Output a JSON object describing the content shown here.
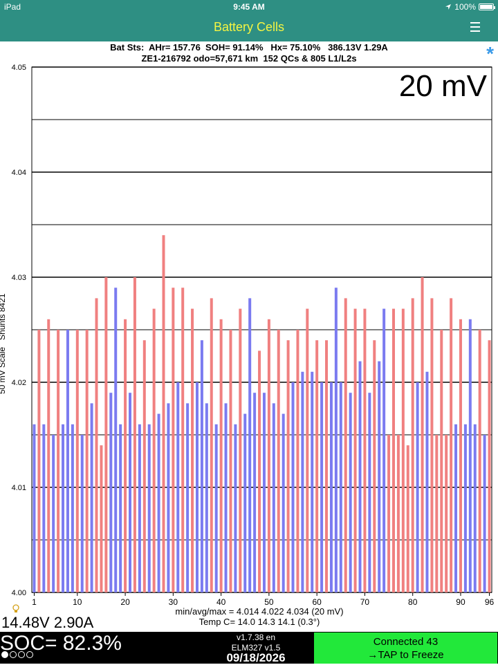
{
  "status_bar": {
    "device": "iPad",
    "time": "9:45 AM",
    "battery": "100%",
    "icons": [
      "location-arrow-icon",
      "battery-icon"
    ]
  },
  "header": {
    "title": "Battery Cells",
    "menu_icon": "hamburger-menu-icon"
  },
  "info": {
    "line1": "Bat Sts:  AHr= 157.76  SOH= 91.14%   Hx= 75.10%   386.13V 1.29A",
    "line2": "ZE1-216792 odo=57,671 km  152 QCs & 805 L1/L2s",
    "asterisk": "*"
  },
  "scale_label": "20 mV",
  "y_axis_label": "50 mV Scale   Shunts 8421",
  "stats": {
    "minavgmax": "min/avg/max = 4.014 4.022 4.034  (20 mV)",
    "temp": "Temp C= 14.0  14.3  14.1  (0.3°)"
  },
  "pack": {
    "voltage_current": "14.48V 2.90A",
    "soc": "SOC= 82.3%"
  },
  "app": {
    "version": "v1.7.38 en",
    "adapter": "ELM327 v1.5",
    "date": "09/18/2026"
  },
  "connection": {
    "status": "Connected 43",
    "action": "→TAP to Freeze"
  },
  "colors": {
    "header_bg": "#2e8f83",
    "title": "#f5f542",
    "bar_red": "#f08080",
    "bar_blue": "#7b7bf0",
    "connect_bg": "#22e83a",
    "asterisk": "#3a9ae8"
  },
  "chart_data": {
    "type": "bar",
    "ylim": [
      4.0,
      4.05
    ],
    "ytick_labels": [
      "4.00",
      "4.01",
      "4.02",
      "4.03",
      "4.04",
      "4.05"
    ],
    "xtick_labels": [
      "1",
      "10",
      "20",
      "30",
      "40",
      "50",
      "60",
      "70",
      "80",
      "90",
      "96"
    ],
    "x": [
      1,
      2,
      3,
      4,
      5,
      6,
      7,
      8,
      9,
      10,
      11,
      12,
      13,
      14,
      15,
      16,
      17,
      18,
      19,
      20,
      21,
      22,
      23,
      24,
      25,
      26,
      27,
      28,
      29,
      30,
      31,
      32,
      33,
      34,
      35,
      36,
      37,
      38,
      39,
      40,
      41,
      42,
      43,
      44,
      45,
      46,
      47,
      48,
      49,
      50,
      51,
      52,
      53,
      54,
      55,
      56,
      57,
      58,
      59,
      60,
      61,
      62,
      63,
      64,
      65,
      66,
      67,
      68,
      69,
      70,
      71,
      72,
      73,
      74,
      75,
      76,
      77,
      78,
      79,
      80,
      81,
      82,
      83,
      84,
      85,
      86,
      87,
      88,
      89,
      90,
      91,
      92,
      93,
      94,
      95,
      96
    ],
    "values": [
      4.016,
      4.025,
      4.016,
      4.026,
      4.015,
      4.025,
      4.016,
      4.025,
      4.016,
      4.025,
      4.015,
      4.025,
      4.018,
      4.028,
      4.014,
      4.03,
      4.019,
      4.029,
      4.016,
      4.026,
      4.019,
      4.03,
      4.016,
      4.024,
      4.016,
      4.027,
      4.017,
      4.034,
      4.018,
      4.029,
      4.02,
      4.029,
      4.018,
      4.027,
      4.02,
      4.024,
      4.018,
      4.028,
      4.016,
      4.026,
      4.018,
      4.025,
      4.016,
      4.027,
      4.017,
      4.028,
      4.019,
      4.023,
      4.019,
      4.026,
      4.018,
      4.025,
      4.017,
      4.024,
      4.02,
      4.025,
      4.021,
      4.027,
      4.021,
      4.024,
      4.02,
      4.024,
      4.02,
      4.029,
      4.02,
      4.028,
      4.019,
      4.027,
      4.022,
      4.027,
      4.019,
      4.024,
      4.022,
      4.027,
      4.015,
      4.027,
      4.015,
      4.027,
      4.014,
      4.028,
      4.02,
      4.03,
      4.021,
      4.028,
      4.015,
      4.025,
      4.015,
      4.028,
      4.016,
      4.026,
      4.016,
      4.026,
      4.016,
      4.025,
      4.015,
      4.024
    ],
    "bar_colors": [
      "blue",
      "red",
      "blue",
      "red",
      "blue",
      "red",
      "blue",
      "blue",
      "blue",
      "red",
      "blue",
      "red",
      "blue",
      "red",
      "red",
      "red",
      "blue",
      "blue",
      "blue",
      "red",
      "blue",
      "red",
      "blue",
      "red",
      "blue",
      "red",
      "blue",
      "red",
      "blue",
      "red",
      "blue",
      "red",
      "blue",
      "red",
      "blue",
      "blue",
      "blue",
      "red",
      "blue",
      "red",
      "blue",
      "red",
      "blue",
      "red",
      "blue",
      "blue",
      "blue",
      "red",
      "blue",
      "red",
      "blue",
      "red",
      "blue",
      "red",
      "blue",
      "red",
      "blue",
      "red",
      "blue",
      "red",
      "blue",
      "red",
      "blue",
      "blue",
      "blue",
      "red",
      "blue",
      "red",
      "blue",
      "red",
      "blue",
      "red",
      "blue",
      "blue",
      "red",
      "red",
      "red",
      "red",
      "red",
      "red",
      "blue",
      "red",
      "blue",
      "red",
      "red",
      "red",
      "red",
      "red",
      "blue",
      "red",
      "blue",
      "blue",
      "blue",
      "red",
      "blue",
      "red"
    ],
    "grid": true
  }
}
